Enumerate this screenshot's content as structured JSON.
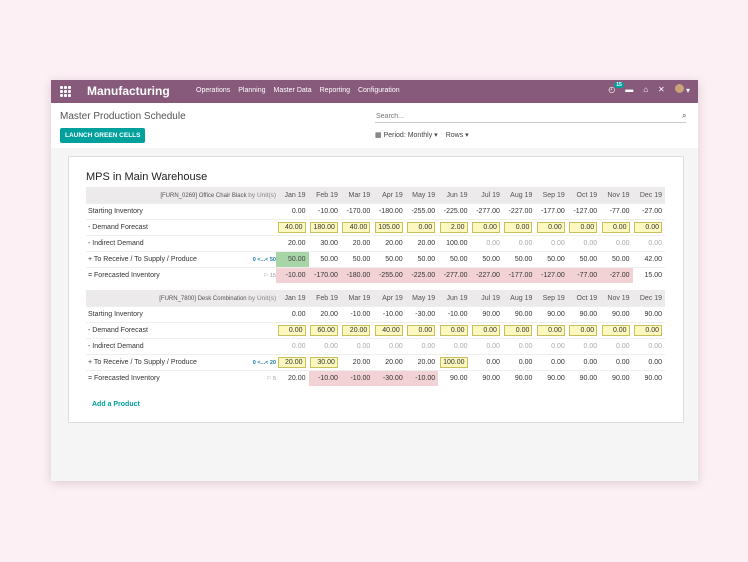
{
  "app": {
    "title": "Manufacturing"
  },
  "menu": [
    "Operations",
    "Planning",
    "Master Data",
    "Reporting",
    "Configuration"
  ],
  "systray": {
    "activity_count": "15"
  },
  "breadcrumb": "Master Production Schedule",
  "search": {
    "placeholder": "Search..."
  },
  "launch_button": "LAUNCH GREEN CELLS",
  "period_label": "Period: Monthly",
  "rows_label": "Rows",
  "sheet_title": "MPS in Main Warehouse",
  "months": [
    "Jan 19",
    "Feb 19",
    "Mar 19",
    "Apr 19",
    "May 19",
    "Jun 19",
    "Jul 19",
    "Aug 19",
    "Sep 19",
    "Oct 19",
    "Nov 19",
    "Dec 19"
  ],
  "row_labels": {
    "starting": "Starting Inventory",
    "demand": "-   Demand Forecast",
    "indirect": "-   Indirect Demand",
    "receive": "+   To Receive / To Supply / Produce",
    "forecasted": "=   Forecasted Inventory"
  },
  "products": [
    {
      "name": "[FURN_0269] Office Chair Black",
      "unit": "by Unit(s)",
      "receive_hint": "0 <...< 50",
      "forecast_hint": "15",
      "starting": [
        "0.00",
        "-10.00",
        "-170.00",
        "-180.00",
        "-255.00",
        "-225.00",
        "-277.00",
        "-227.00",
        "-177.00",
        "-127.00",
        "-77.00",
        "-27.00"
      ],
      "demand": [
        "40.00",
        "180.00",
        "40.00",
        "105.00",
        "0.00",
        "2.00",
        "0.00",
        "0.00",
        "0.00",
        "0.00",
        "0.00",
        "0.00"
      ],
      "indirect": [
        "20.00",
        "30.00",
        "20.00",
        "20.00",
        "20.00",
        "100.00",
        "0.00",
        "0.00",
        "0.00",
        "0.00",
        "0.00",
        "0.00"
      ],
      "receive": [
        "50.00",
        "50.00",
        "50.00",
        "50.00",
        "50.00",
        "50.00",
        "50.00",
        "50.00",
        "50.00",
        "50.00",
        "50.00",
        "42.00"
      ],
      "forecasted": [
        "-10.00",
        "-170.00",
        "-180.00",
        "-255.00",
        "-225.00",
        "-277.00",
        "-227.00",
        "-177.00",
        "-127.00",
        "-77.00",
        "-27.00",
        "15.00"
      ]
    },
    {
      "name": "[FURN_7800] Desk Combination",
      "unit": "by Unit(s)",
      "receive_hint": "0 <...< 20",
      "forecast_hint": "5",
      "starting": [
        "0.00",
        "20.00",
        "-10.00",
        "-10.00",
        "-30.00",
        "-10.00",
        "90.00",
        "90.00",
        "90.00",
        "90.00",
        "90.00",
        "90.00"
      ],
      "demand": [
        "0.00",
        "60.00",
        "20.00",
        "40.00",
        "0.00",
        "0.00",
        "0.00",
        "0.00",
        "0.00",
        "0.00",
        "0.00",
        "0.00"
      ],
      "indirect": [
        "0.00",
        "0.00",
        "0.00",
        "0.00",
        "0.00",
        "0.00",
        "0.00",
        "0.00",
        "0.00",
        "0.00",
        "0.00",
        "0.00"
      ],
      "receive": [
        "20.00",
        "30.00",
        "20.00",
        "20.00",
        "20.00",
        "100.00",
        "0.00",
        "0.00",
        "0.00",
        "0.00",
        "0.00",
        "0.00"
      ],
      "forecasted": [
        "20.00",
        "-10.00",
        "-10.00",
        "-30.00",
        "-10.00",
        "90.00",
        "90.00",
        "90.00",
        "90.00",
        "90.00",
        "90.00",
        "90.00"
      ]
    }
  ],
  "add_product": "Add a Product"
}
